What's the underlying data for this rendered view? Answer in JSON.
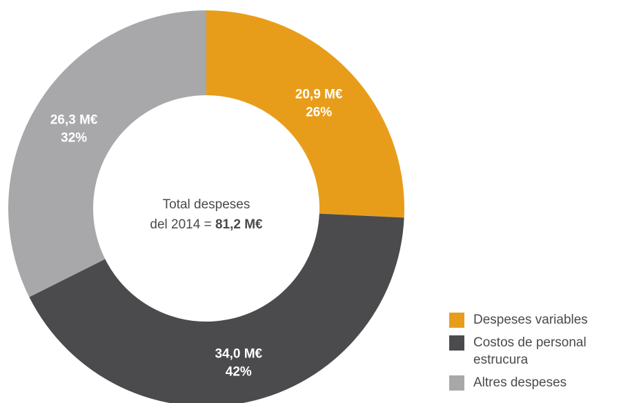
{
  "chart_data": {
    "type": "pie",
    "variant": "donut",
    "total_label": {
      "line1": "Total despeses",
      "line2_prefix": "del 2014 = ",
      "line2_value": "81,2 M€"
    },
    "series": [
      {
        "name": "Despeses variables",
        "value": 20.9,
        "percent": 26,
        "value_label": "20,9 M€",
        "percent_label": "26%",
        "color": "#E89D1A"
      },
      {
        "name": "Costos de personal estrucura",
        "value": 34.0,
        "percent": 42,
        "value_label": "34,0 M€",
        "percent_label": "42%",
        "color": "#4B4B4D"
      },
      {
        "name": "Altres despeses",
        "value": 26.3,
        "percent": 32,
        "value_label": "26,3 M€",
        "percent_label": "32%",
        "color": "#A8A8AB"
      }
    ],
    "legend_placement": "bottom-right",
    "start_angle": "12 o'clock",
    "direction": "clockwise"
  }
}
